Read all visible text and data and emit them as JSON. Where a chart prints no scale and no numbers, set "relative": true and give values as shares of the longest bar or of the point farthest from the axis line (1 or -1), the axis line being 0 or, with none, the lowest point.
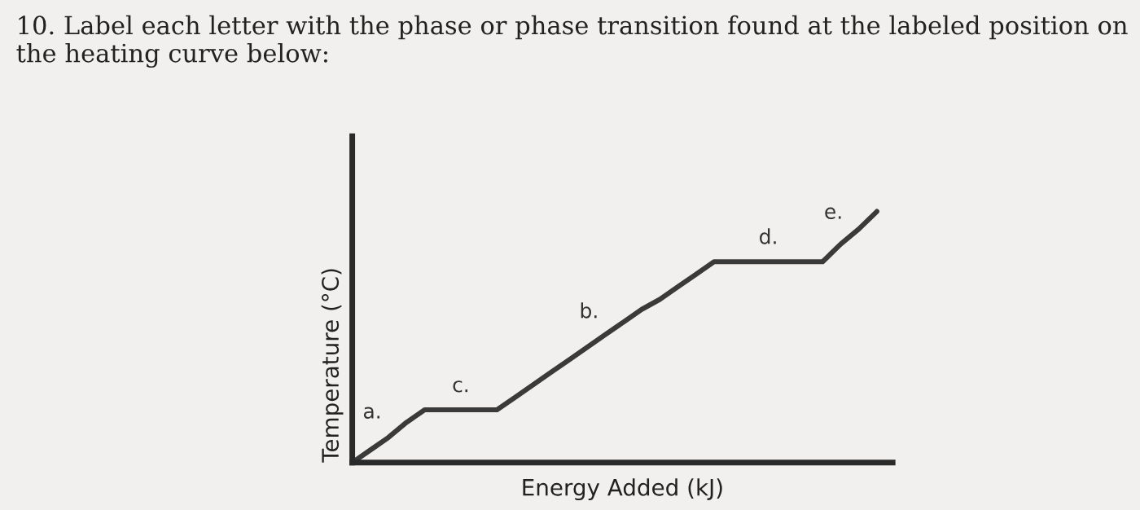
{
  "chart_data": {
    "type": "line",
    "relative": true,
    "title": "10. Label each letter with the phase or phase transition found at the labeled position on the heating curve below:",
    "xlabel": "Energy Added (kJ)",
    "ylabel": "Temperature (°C)",
    "categories": [
      null,
      null,
      null,
      null,
      null,
      null,
      null,
      null,
      null,
      null,
      null,
      null,
      null,
      null,
      null,
      null,
      null,
      null,
      null,
      null,
      null,
      null,
      null,
      null,
      null,
      null,
      null,
      null,
      null,
      null
    ],
    "series": [
      {
        "color": "#3a3a3a",
        "values": [
          0,
          0.05,
          0.1,
          0.16,
          0.21,
          0.21,
          0.21,
          0.21,
          0.21,
          0.26,
          0.31,
          0.36,
          0.41,
          0.46,
          0.51,
          0.56,
          0.61,
          0.65,
          0.7,
          0.75,
          0.8,
          0.8,
          0.8,
          0.8,
          0.8,
          0.8,
          0.8,
          0.87,
          0.93,
          1
        ]
      }
    ],
    "annotations": [
      "a.",
      "c.",
      "b.",
      "d.",
      "e."
    ]
  }
}
